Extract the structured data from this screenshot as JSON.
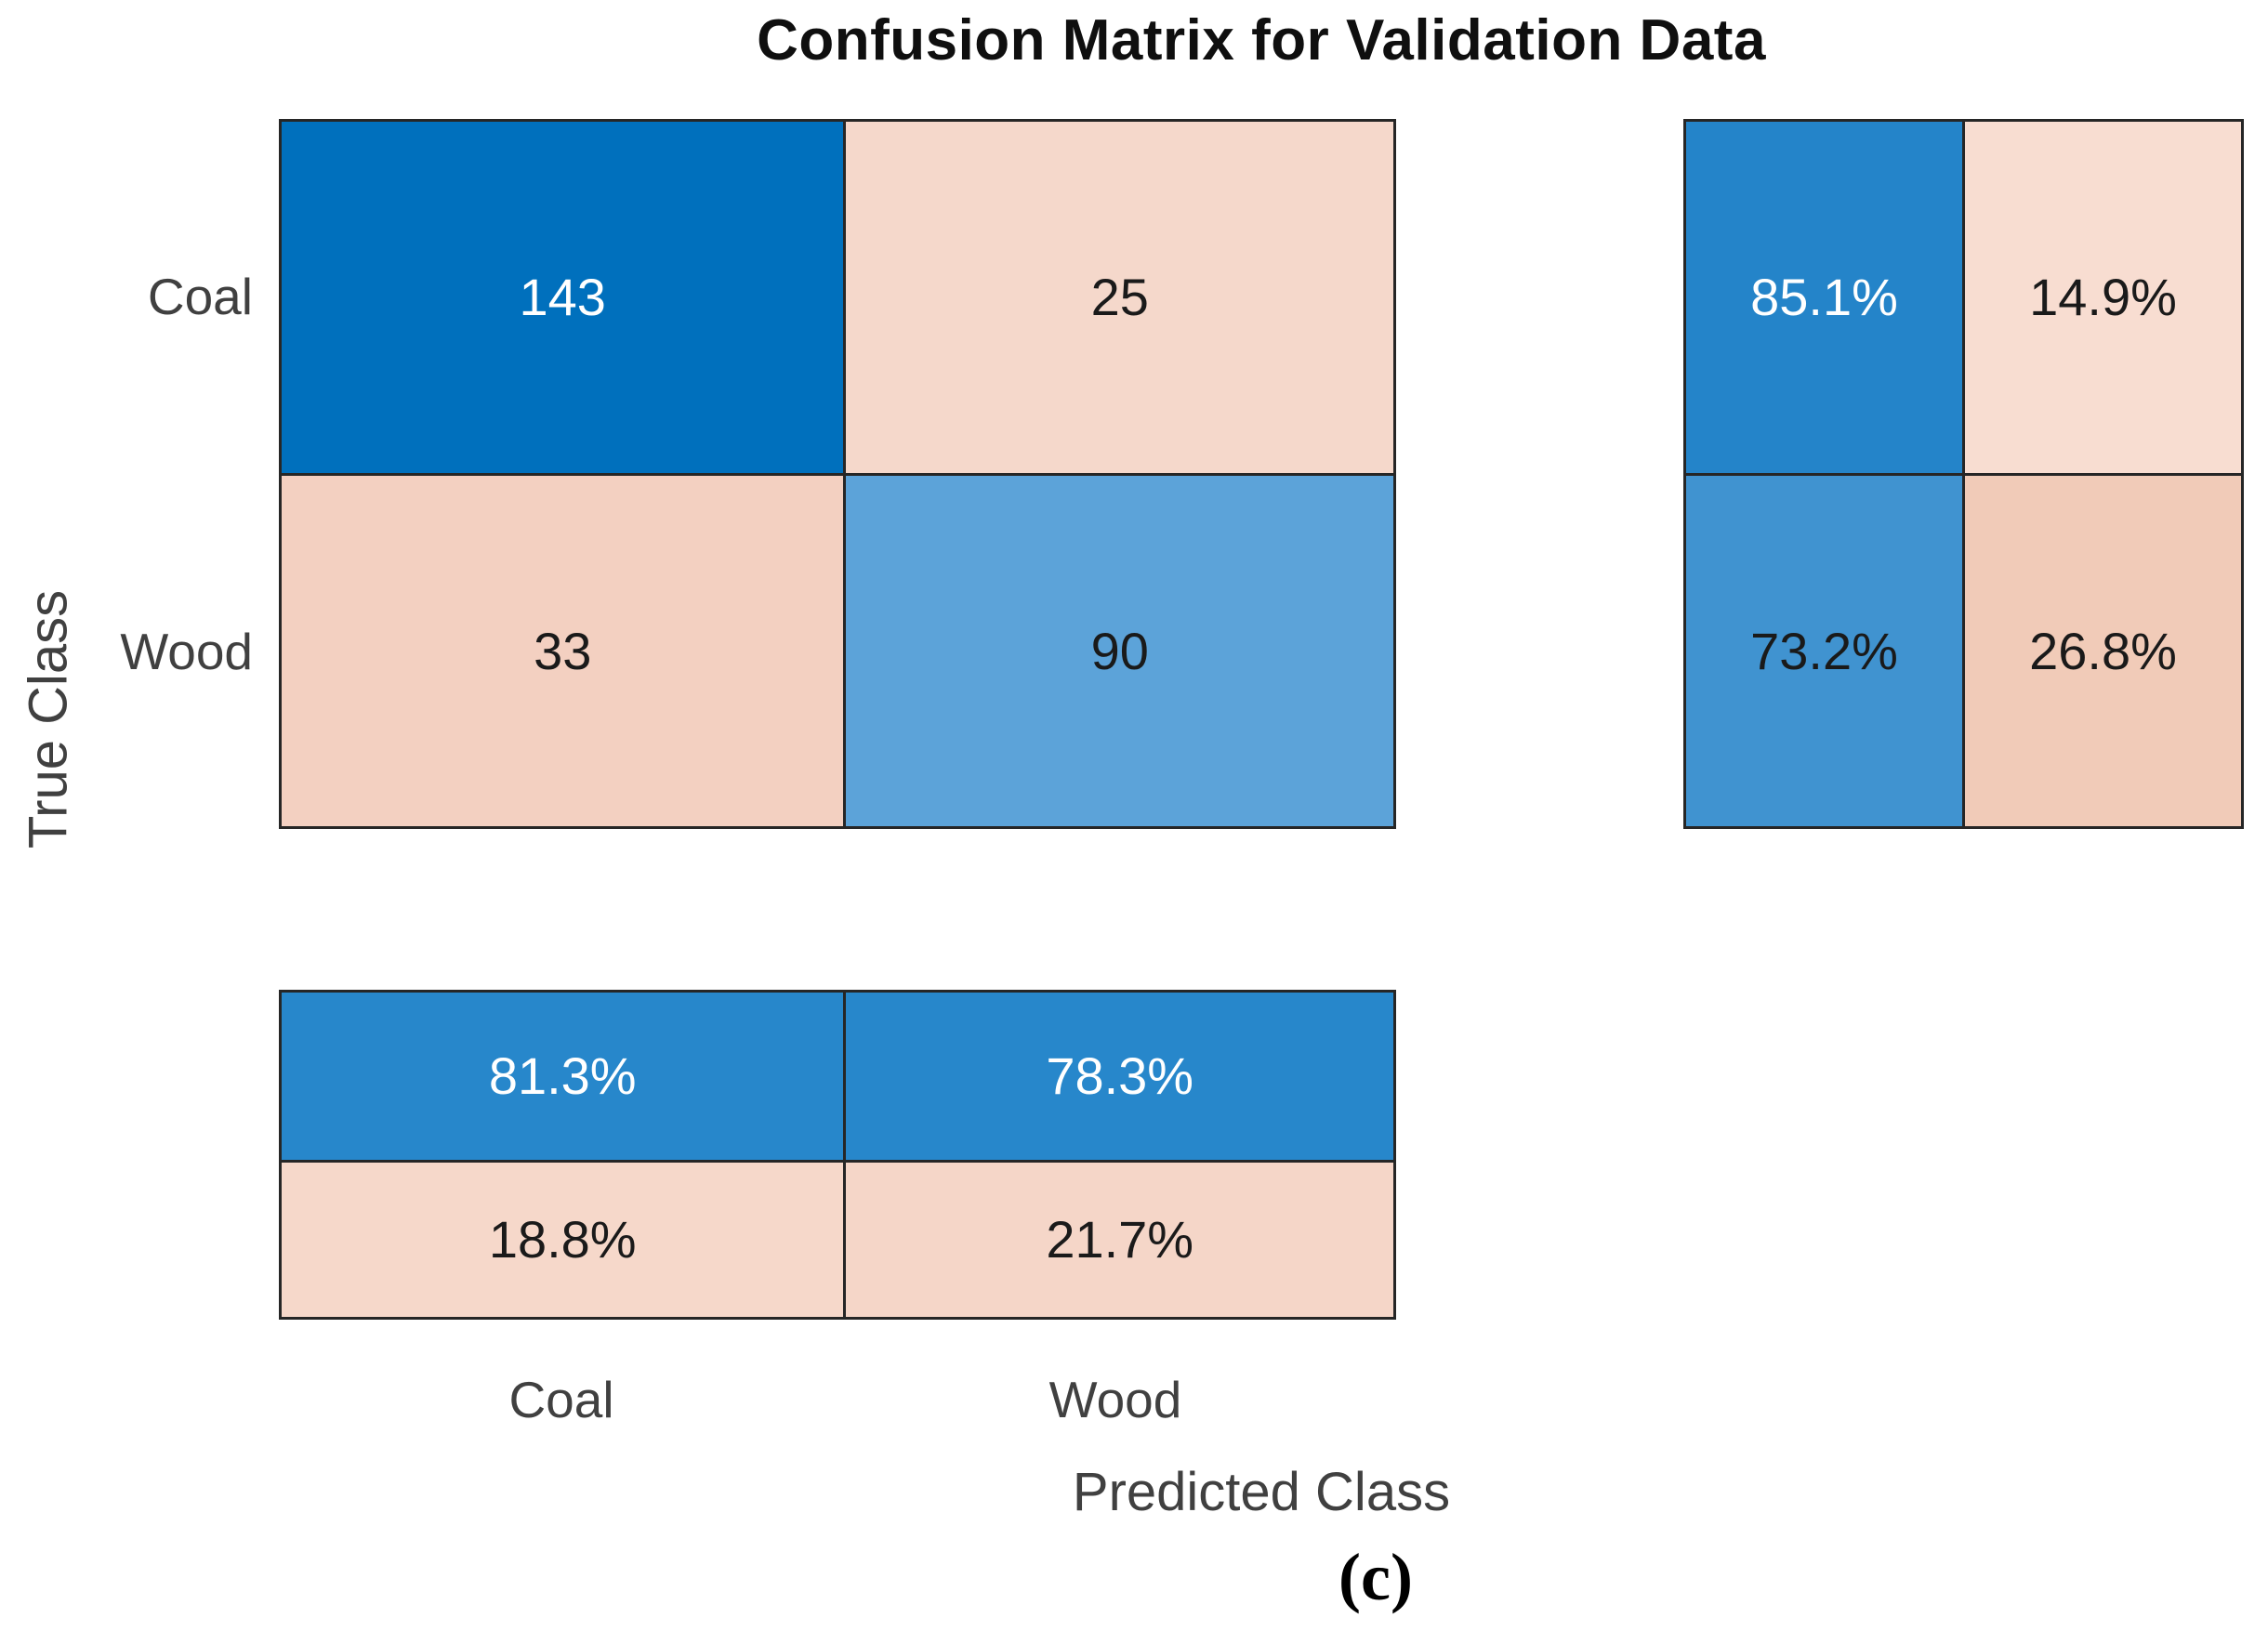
{
  "title": "Confusion Matrix for Validation Data",
  "caption": "(c)",
  "y_axis": {
    "label": "True Class",
    "row_labels": [
      "Coal",
      "Wood"
    ]
  },
  "x_axis": {
    "label": "Predicted Class",
    "col_labels": [
      "Coal",
      "Wood"
    ]
  },
  "colors": {
    "grid_line": "#262626",
    "background": "#ffffff",
    "label_text": "#404040",
    "title_text": "#0f0f0f"
  },
  "main_matrix": {
    "cells": [
      {
        "value": "143",
        "bg": "#0070bd",
        "fg": "#ffffff"
      },
      {
        "value": "25",
        "bg": "#f5d8cb",
        "fg": "#1a1a1a"
      },
      {
        "value": "33",
        "bg": "#f3d0c1",
        "fg": "#1a1a1a"
      },
      {
        "value": "90",
        "bg": "#5ca3d9",
        "fg": "#1a1a1a"
      }
    ]
  },
  "row_summary": {
    "cells": [
      {
        "value": "85.1%",
        "bg": "#2484c9",
        "fg": "#ffffff"
      },
      {
        "value": "14.9%",
        "bg": "#f8ddd1",
        "fg": "#1a1a1a"
      },
      {
        "value": "73.2%",
        "bg": "#4093d0",
        "fg": "#1a1a1a"
      },
      {
        "value": "26.8%",
        "bg": "#f1cbb8",
        "fg": "#1a1a1a"
      }
    ]
  },
  "col_summary": {
    "cells": [
      {
        "value": "81.3%",
        "bg": "#2787cb",
        "fg": "#ffffff"
      },
      {
        "value": "78.3%",
        "bg": "#2787cb",
        "fg": "#ffffff"
      },
      {
        "value": "18.8%",
        "bg": "#f6d8ca",
        "fg": "#1a1a1a"
      },
      {
        "value": "21.7%",
        "bg": "#f5d6c8",
        "fg": "#1a1a1a"
      }
    ]
  },
  "chart_data": {
    "type": "heatmap",
    "title": "Confusion Matrix for Validation Data",
    "xlabel": "Predicted Class",
    "ylabel": "True Class",
    "classes": [
      "Coal",
      "Wood"
    ],
    "matrix_counts": [
      [
        143,
        25
      ],
      [
        33,
        90
      ]
    ],
    "row_normalized_pct": [
      [
        85.1,
        14.9
      ],
      [
        73.2,
        26.8
      ]
    ],
    "column_normalized_pct": [
      [
        81.3,
        78.3
      ],
      [
        18.8,
        21.7
      ]
    ],
    "legend_position": "none",
    "grid": "off",
    "subfigure_label": "(c)"
  }
}
